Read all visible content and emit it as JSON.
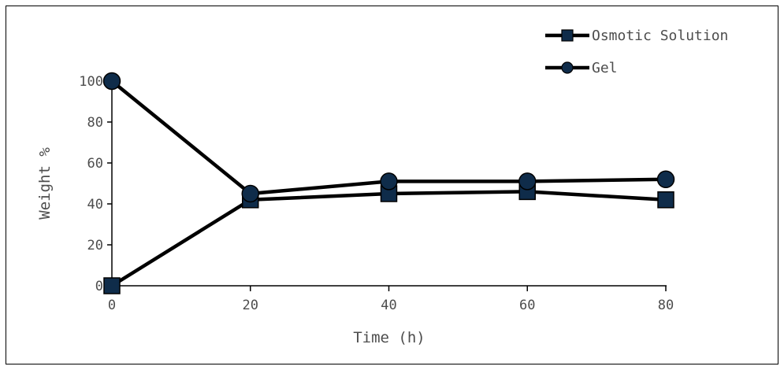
{
  "chart_data": {
    "type": "line",
    "title": "",
    "xlabel": "Time (h)",
    "ylabel": "Weight %",
    "xlim": [
      0,
      80
    ],
    "ylim": [
      0,
      100
    ],
    "xticks": [
      0,
      20,
      40,
      60,
      80
    ],
    "yticks": [
      0,
      20,
      40,
      60,
      80,
      100
    ],
    "grid": false,
    "legend_position": "top-right",
    "series": [
      {
        "name": "Osmotic Solution",
        "marker": "square",
        "color": "#0f2c4a",
        "line_color": "#000000",
        "x": [
          0,
          20,
          40,
          60,
          80
        ],
        "values": [
          0,
          42,
          45,
          46,
          42
        ]
      },
      {
        "name": "Gel",
        "marker": "circle",
        "color": "#0f2c4a",
        "line_color": "#000000",
        "x": [
          0,
          20,
          40,
          60,
          80
        ],
        "values": [
          100,
          45,
          51,
          51,
          52
        ]
      }
    ]
  }
}
